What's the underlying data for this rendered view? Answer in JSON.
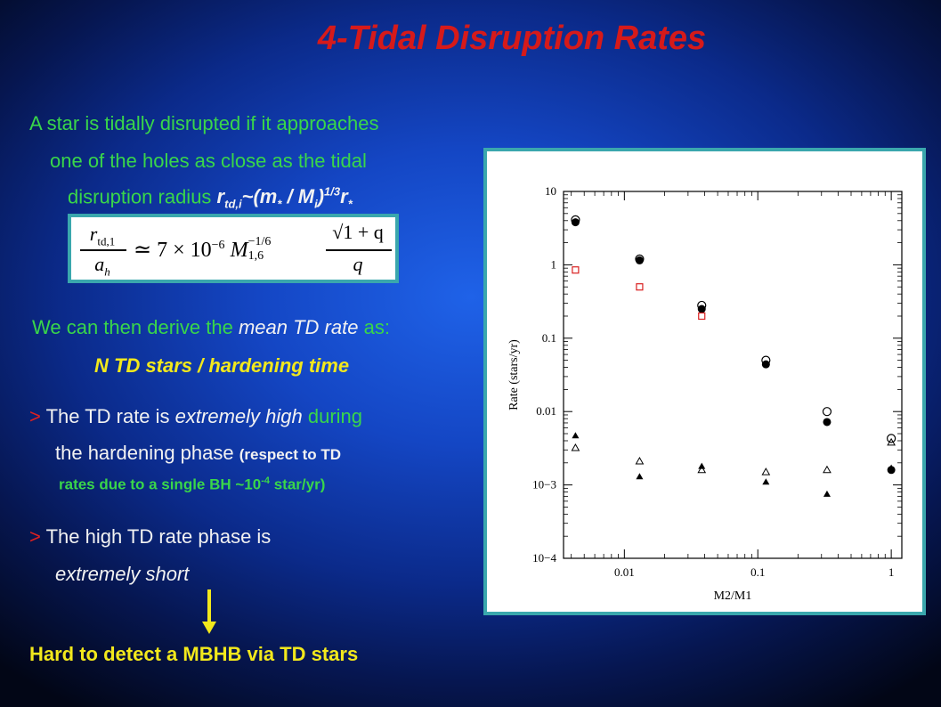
{
  "title": "4-Tidal Disruption Rates",
  "intro": {
    "line1": "A star is tidally disrupted if it approaches",
    "line2": "one of the holes as close as the tidal",
    "line3_text": "disruption radius ",
    "line3_r": "r",
    "line3_sub": "td,i",
    "line3_expr": "~(m",
    "line3_star1": "*",
    "line3_mid": " / M",
    "line3_sub_i": "i",
    "line3_close": ")",
    "line3_exp": "1/3",
    "line3_r2": "r",
    "line3_star2": "*"
  },
  "formula": {
    "lhs_num": "r",
    "lhs_num_sub": "td,1",
    "lhs_den": "a",
    "lhs_den_sub": "h",
    "approx": "≃ 7 × 10",
    "exp1": "−6",
    "mass": "M",
    "mass_sub": "1,6",
    "mass_exp": "−1/6",
    "rhs_num": "√1 + q",
    "rhs_den": "q"
  },
  "derive": {
    "line_a": "We can then derive the ",
    "line_b": "mean TD rate",
    "line_c": " as:",
    "emphasis": "N TD stars / hardening time"
  },
  "point1": {
    "gt": ">",
    "a": " The TD rate is ",
    "b": "extremely high",
    "c": " during",
    "d": "the hardening phase ",
    "e": "(respect to TD",
    "f": "rates due to a single BH ~10",
    "f_exp": "-4",
    "g": " star/yr)"
  },
  "point2": {
    "gt": ">",
    "a": " The high TD rate phase is",
    "b": "extremely short"
  },
  "conclusion": "Hard to detect a MBHB via TD stars",
  "chart_data": {
    "type": "scatter",
    "xlabel": "M2/M1",
    "ylabel": "Rate (stars/yr)",
    "xscale": "log",
    "yscale": "log",
    "xlim": [
      0.0035,
      1.2
    ],
    "ylim": [
      0.0001,
      10
    ],
    "x_ticks": [
      "0.01",
      "0.1",
      "1"
    ],
    "y_ticks": [
      "10",
      "1",
      "0.1",
      "0.01",
      "10−3",
      "10−4"
    ],
    "legend": "none",
    "series": [
      {
        "marker": "filled-circle",
        "color": "#000000",
        "x": [
          0.0043,
          0.013,
          0.038,
          0.115,
          0.33,
          1.0
        ],
        "y": [
          3.8,
          1.15,
          0.25,
          0.044,
          0.0072,
          0.0016
        ]
      },
      {
        "marker": "open-circle",
        "color": "#000000",
        "x": [
          0.0043,
          0.013,
          0.038,
          0.115,
          0.33,
          1.0
        ],
        "y": [
          4.1,
          1.2,
          0.28,
          0.05,
          0.01,
          0.0043
        ]
      },
      {
        "marker": "open-square",
        "color": "#d92020",
        "x": [
          0.0043,
          0.013,
          0.038
        ],
        "y": [
          0.85,
          0.5,
          0.2
        ]
      },
      {
        "marker": "filled-triangle",
        "color": "#000000",
        "x": [
          0.0043,
          0.013,
          0.038,
          0.115,
          0.33,
          1.0
        ],
        "y": [
          0.0047,
          0.0013,
          0.0018,
          0.0011,
          0.00075,
          0.0017
        ]
      },
      {
        "marker": "open-triangle",
        "color": "#000000",
        "x": [
          0.0043,
          0.013,
          0.038,
          0.115,
          0.33,
          1.0
        ],
        "y": [
          0.0032,
          0.0021,
          0.0016,
          0.0015,
          0.0016,
          0.0038
        ]
      }
    ]
  }
}
